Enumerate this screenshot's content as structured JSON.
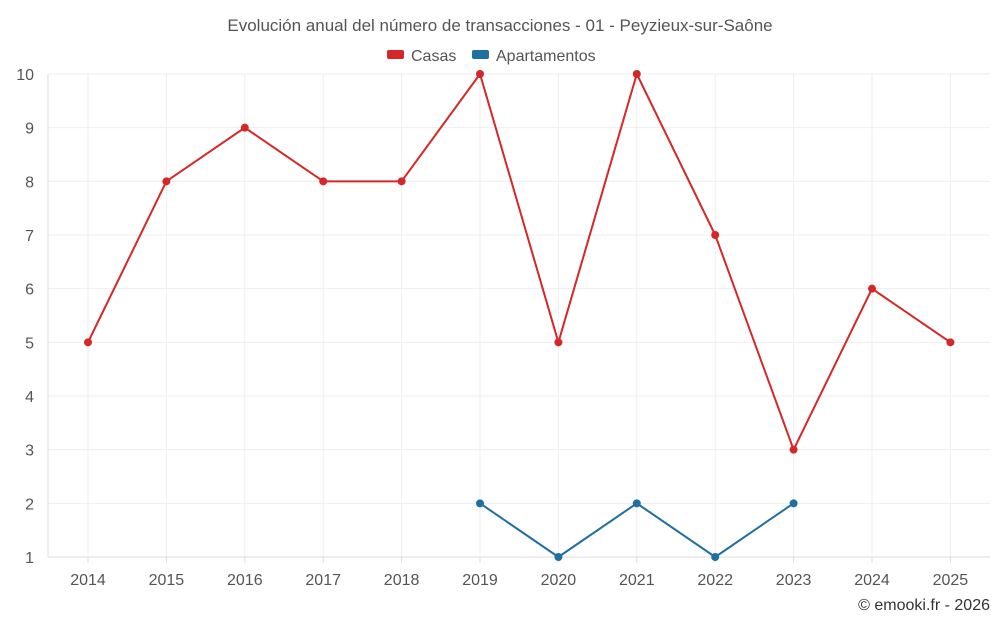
{
  "chart_data": {
    "type": "line",
    "title": "Evolución anual del número de transacciones - 01 - Peyzieux-sur-Saône",
    "categories": [
      "2014",
      "2015",
      "2016",
      "2017",
      "2018",
      "2019",
      "2020",
      "2021",
      "2022",
      "2023",
      "2024",
      "2025"
    ],
    "ylim": [
      1,
      10
    ],
    "yticks": [
      1,
      2,
      3,
      4,
      5,
      6,
      7,
      8,
      9,
      10
    ],
    "grid": true,
    "legend_position": "top",
    "series": [
      {
        "name": "Casas",
        "color": "#d62728",
        "values": [
          5,
          8,
          9,
          8,
          8,
          10,
          5,
          10,
          7,
          3,
          6,
          5
        ]
      },
      {
        "name": "Apartamentos",
        "color": "#1f6f9f",
        "values": [
          null,
          null,
          null,
          null,
          null,
          2,
          1,
          2,
          1,
          2,
          null,
          null
        ]
      }
    ],
    "credit": "© emooki.fr - 2026"
  }
}
